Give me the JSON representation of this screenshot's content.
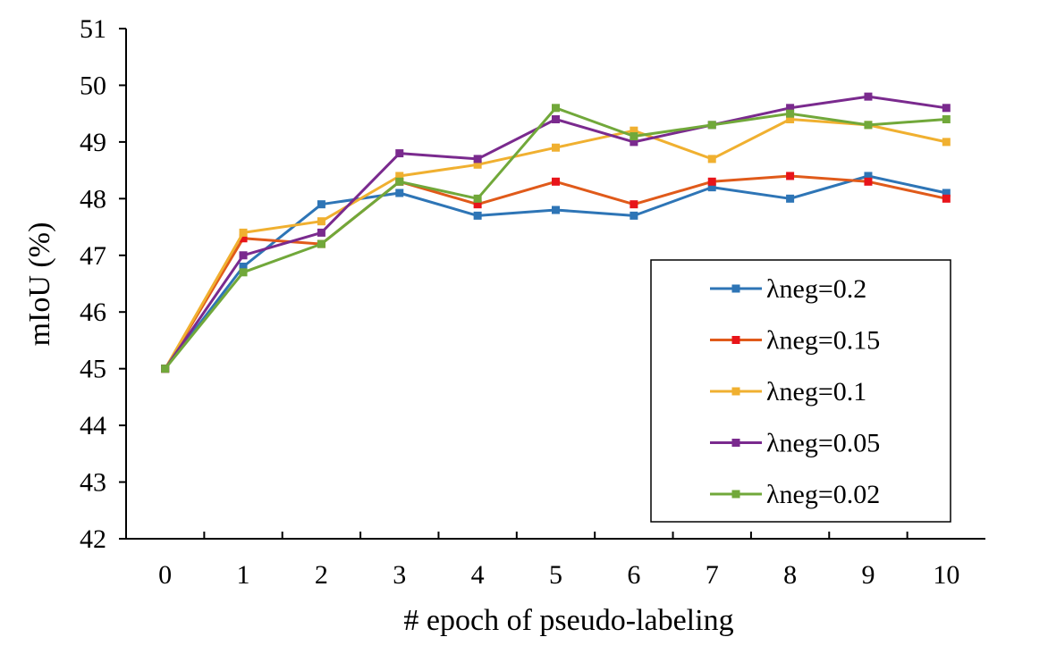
{
  "chart_data": {
    "type": "line",
    "title": "",
    "xlabel": "# epoch of pseudo-labeling",
    "ylabel": "mIoU (%)",
    "x": [
      0,
      1,
      2,
      3,
      4,
      5,
      6,
      7,
      8,
      9,
      10
    ],
    "x_tick_labels": [
      "0",
      "1",
      "2",
      "3",
      "4",
      "5",
      "6",
      "7",
      "8",
      "9",
      "10"
    ],
    "y_tick_labels": [
      "42",
      "43",
      "44",
      "45",
      "46",
      "47",
      "48",
      "49",
      "50",
      "51"
    ],
    "ylim": [
      42,
      51
    ],
    "grid": false,
    "legend_position": "bottom-right",
    "series": [
      {
        "name": "λneg=0.2",
        "color": "#2E75B6",
        "values": [
          45.0,
          46.8,
          47.9,
          48.1,
          47.7,
          47.8,
          47.7,
          48.2,
          48.0,
          48.4,
          48.1
        ]
      },
      {
        "name": "λneg=0.15",
        "color": "#E05A1A",
        "values": [
          45.0,
          47.3,
          47.2,
          48.3,
          47.9,
          48.3,
          47.9,
          48.3,
          48.4,
          48.3,
          48.0
        ]
      },
      {
        "name": "λneg=0.1",
        "color": "#F0B030",
        "values": [
          45.0,
          47.4,
          47.6,
          48.4,
          48.6,
          48.9,
          49.2,
          48.7,
          49.4,
          49.3,
          49.0
        ]
      },
      {
        "name": "λneg=0.05",
        "color": "#7A2A8E",
        "values": [
          45.0,
          47.0,
          47.4,
          48.8,
          48.7,
          49.4,
          49.0,
          49.3,
          49.6,
          49.8,
          49.6
        ]
      },
      {
        "name": "λneg=0.02",
        "color": "#71A83A",
        "values": [
          45.0,
          46.7,
          47.2,
          48.3,
          48.0,
          49.6,
          49.1,
          49.3,
          49.5,
          49.3,
          49.4
        ]
      }
    ],
    "marker_colors": {
      "λneg=0.15": "#E8141A"
    }
  }
}
